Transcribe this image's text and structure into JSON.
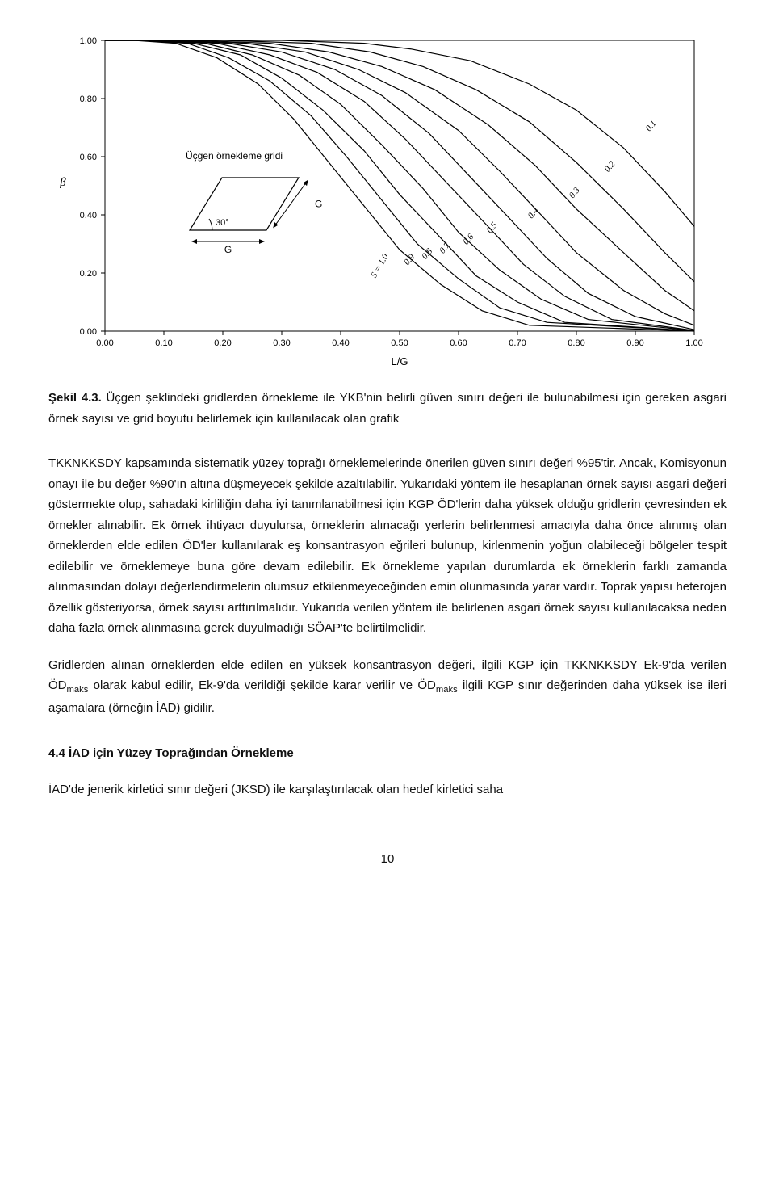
{
  "chart": {
    "type": "line",
    "xlim": [
      0.0,
      1.0
    ],
    "ylim": [
      0.0,
      1.0
    ],
    "xticks": [
      "0.00",
      "0.10",
      "0.20",
      "0.30",
      "0.40",
      "0.50",
      "0.60",
      "0.70",
      "0.80",
      "0.90",
      "1.00"
    ],
    "yticks": [
      "0.00",
      "0.20",
      "0.40",
      "0.60",
      "0.80",
      "1.00"
    ],
    "xlabel": "L/G",
    "ylabel": "β",
    "background_color": "#ffffff",
    "axis_color": "#000000",
    "grid_color": "#000000",
    "line_color": "#000000",
    "line_width": 1.2,
    "title_fontsize": 12,
    "tick_fontsize": 11,
    "inset": {
      "title": "Üçgen örnekleme gridi",
      "angle_label": "30°",
      "side_labels": [
        "G",
        "G"
      ],
      "box_fill": "#ffffff",
      "box_stroke": "#000000"
    },
    "curves": [
      {
        "label": "0.1",
        "label_x": 0.93,
        "label_y": 0.7
      },
      {
        "label": "0.2",
        "label_x": 0.86,
        "label_y": 0.56
      },
      {
        "label": "0.3",
        "label_x": 0.8,
        "label_y": 0.47
      },
      {
        "label": "0.4",
        "label_x": 0.73,
        "label_y": 0.4
      },
      {
        "label": "0.5",
        "label_x": 0.66,
        "label_y": 0.35
      },
      {
        "label": "0.6",
        "label_x": 0.62,
        "label_y": 0.31
      },
      {
        "label": "0.7",
        "label_x": 0.58,
        "label_y": 0.28
      },
      {
        "label": "0.8",
        "label_x": 0.55,
        "label_y": 0.26
      },
      {
        "label": "0.9",
        "label_x": 0.52,
        "label_y": 0.24
      },
      {
        "label": "S = 1.0",
        "label_x": 0.47,
        "label_y": 0.22,
        "is_s_label": true
      }
    ],
    "curve_data": {
      "0.1": [
        [
          0.0,
          1.0
        ],
        [
          0.3,
          1.0
        ],
        [
          0.44,
          0.99
        ],
        [
          0.52,
          0.97
        ],
        [
          0.62,
          0.93
        ],
        [
          0.72,
          0.85
        ],
        [
          0.8,
          0.76
        ],
        [
          0.88,
          0.63
        ],
        [
          0.95,
          0.48
        ],
        [
          1.0,
          0.36
        ]
      ],
      "0.2": [
        [
          0.0,
          1.0
        ],
        [
          0.2,
          1.0
        ],
        [
          0.35,
          0.99
        ],
        [
          0.45,
          0.96
        ],
        [
          0.54,
          0.91
        ],
        [
          0.63,
          0.83
        ],
        [
          0.72,
          0.72
        ],
        [
          0.8,
          0.58
        ],
        [
          0.88,
          0.42
        ],
        [
          0.95,
          0.27
        ],
        [
          1.0,
          0.17
        ]
      ],
      "0.3": [
        [
          0.0,
          1.0
        ],
        [
          0.15,
          1.0
        ],
        [
          0.28,
          0.99
        ],
        [
          0.38,
          0.96
        ],
        [
          0.47,
          0.91
        ],
        [
          0.56,
          0.83
        ],
        [
          0.65,
          0.71
        ],
        [
          0.73,
          0.57
        ],
        [
          0.8,
          0.42
        ],
        [
          0.88,
          0.27
        ],
        [
          0.95,
          0.14
        ],
        [
          1.0,
          0.07
        ]
      ],
      "0.4": [
        [
          0.0,
          1.0
        ],
        [
          0.12,
          1.0
        ],
        [
          0.24,
          0.99
        ],
        [
          0.34,
          0.96
        ],
        [
          0.43,
          0.9
        ],
        [
          0.51,
          0.82
        ],
        [
          0.6,
          0.69
        ],
        [
          0.67,
          0.55
        ],
        [
          0.74,
          0.4
        ],
        [
          0.8,
          0.27
        ],
        [
          0.88,
          0.14
        ],
        [
          0.95,
          0.06
        ],
        [
          1.0,
          0.02
        ]
      ],
      "0.5": [
        [
          0.0,
          1.0
        ],
        [
          0.1,
          1.0
        ],
        [
          0.21,
          0.99
        ],
        [
          0.3,
          0.96
        ],
        [
          0.39,
          0.9
        ],
        [
          0.47,
          0.81
        ],
        [
          0.55,
          0.68
        ],
        [
          0.62,
          0.53
        ],
        [
          0.69,
          0.38
        ],
        [
          0.75,
          0.25
        ],
        [
          0.82,
          0.13
        ],
        [
          0.9,
          0.05
        ],
        [
          1.0,
          0.005
        ]
      ],
      "0.6": [
        [
          0.0,
          1.0
        ],
        [
          0.09,
          1.0
        ],
        [
          0.19,
          0.99
        ],
        [
          0.28,
          0.95
        ],
        [
          0.36,
          0.89
        ],
        [
          0.44,
          0.79
        ],
        [
          0.51,
          0.66
        ],
        [
          0.58,
          0.51
        ],
        [
          0.65,
          0.36
        ],
        [
          0.71,
          0.23
        ],
        [
          0.78,
          0.12
        ],
        [
          0.86,
          0.04
        ],
        [
          1.0,
          0.002
        ]
      ],
      "0.7": [
        [
          0.0,
          1.0
        ],
        [
          0.08,
          1.0
        ],
        [
          0.17,
          0.99
        ],
        [
          0.25,
          0.95
        ],
        [
          0.33,
          0.88
        ],
        [
          0.4,
          0.78
        ],
        [
          0.47,
          0.64
        ],
        [
          0.54,
          0.49
        ],
        [
          0.6,
          0.34
        ],
        [
          0.67,
          0.21
        ],
        [
          0.74,
          0.11
        ],
        [
          0.82,
          0.04
        ],
        [
          1.0,
          0.001
        ]
      ],
      "0.8": [
        [
          0.0,
          1.0
        ],
        [
          0.07,
          1.0
        ],
        [
          0.15,
          0.99
        ],
        [
          0.23,
          0.95
        ],
        [
          0.3,
          0.87
        ],
        [
          0.37,
          0.76
        ],
        [
          0.44,
          0.62
        ],
        [
          0.5,
          0.47
        ],
        [
          0.57,
          0.32
        ],
        [
          0.63,
          0.19
        ],
        [
          0.7,
          0.1
        ],
        [
          0.78,
          0.03
        ],
        [
          1.0,
          0.0005
        ]
      ],
      "0.9": [
        [
          0.0,
          1.0
        ],
        [
          0.06,
          1.0
        ],
        [
          0.14,
          0.99
        ],
        [
          0.21,
          0.94
        ],
        [
          0.28,
          0.86
        ],
        [
          0.35,
          0.74
        ],
        [
          0.41,
          0.6
        ],
        [
          0.47,
          0.45
        ],
        [
          0.53,
          0.3
        ],
        [
          0.6,
          0.18
        ],
        [
          0.67,
          0.08
        ],
        [
          0.75,
          0.03
        ],
        [
          1.0,
          0.0002
        ]
      ],
      "1.0": [
        [
          0.0,
          1.0
        ],
        [
          0.05,
          1.0
        ],
        [
          0.12,
          0.99
        ],
        [
          0.19,
          0.94
        ],
        [
          0.26,
          0.85
        ],
        [
          0.32,
          0.73
        ],
        [
          0.38,
          0.58
        ],
        [
          0.44,
          0.43
        ],
        [
          0.5,
          0.28
        ],
        [
          0.57,
          0.16
        ],
        [
          0.64,
          0.07
        ],
        [
          0.72,
          0.02
        ],
        [
          1.0,
          0.0001
        ]
      ]
    }
  },
  "caption": {
    "prefix": "Şekil 4.3.",
    "text": " Üçgen şeklindeki gridlerden örnekleme ile YKB'nin belirli güven sınırı değeri ile bulunabilmesi için gereken asgari örnek sayısı ve grid boyutu belirlemek için kullanılacak olan grafik"
  },
  "para1": {
    "t1": "TKKNKKSDY kapsamında sistematik yüzey toprağı örneklemelerinde önerilen güven sınırı değeri %95'tir.  Ancak, Komisyonun onayı ile bu değer %90'ın altına düşmeyecek şekilde azaltılabilir. Yukarıdaki yöntem ile hesaplanan örnek sayısı asgari değeri göstermekte olup, sahadaki kirliliğin daha iyi tanımlanabilmesi için KGP ÖD'lerin daha yüksek olduğu gridlerin çevresinden ek örnekler alınabilir.  Ek örnek ihtiyacı duyulursa, örneklerin alınacağı yerlerin belirlenmesi amacıyla daha önce alınmış olan örneklerden elde edilen ÖD'ler kullanılarak eş konsantrasyon eğrileri bulunup, kirlenmenin yoğun olabileceği bölgeler tespit edilebilir ve örneklemeye buna göre devam edilebilir. Ek örnekleme yapılan durumlarda ek örneklerin farklı zamanda alınmasından dolayı değerlendirmelerin olumsuz etkilenmeyeceğinden emin olunmasında yarar vardır. Toprak yapısı heterojen özellik gösteriyorsa, örnek sayısı arttırılmalıdır. Yukarıda verilen yöntem ile belirlenen asgari örnek sayısı kullanılacaksa neden daha fazla örnek alınmasına gerek duyulmadığı SÖAP'te belirtilmelidir."
  },
  "para2": {
    "t1": "Gridlerden alınan örneklerden elde edilen ",
    "u1": "en yüksek",
    "t2": " konsantrasyon değeri, ilgili KGP için TKKNKKSDY Ek-9'da verilen ÖD",
    "sub1": "maks",
    "t3": " olarak kabul edilir, Ek-9'da verildiği şekilde karar verilir ve ÖD",
    "sub2": "maks",
    "t4": " ilgili KGP sınır değerinden daha yüksek ise ileri aşamalara (örneğin İAD) gidilir."
  },
  "heading": "4.4 İAD için Yüzey Toprağından Örnekleme",
  "para3": "İAD'de jenerik kirletici sınır değeri (JKSD) ile karşılaştırılacak olan hedef kirletici saha",
  "page_number": "10"
}
